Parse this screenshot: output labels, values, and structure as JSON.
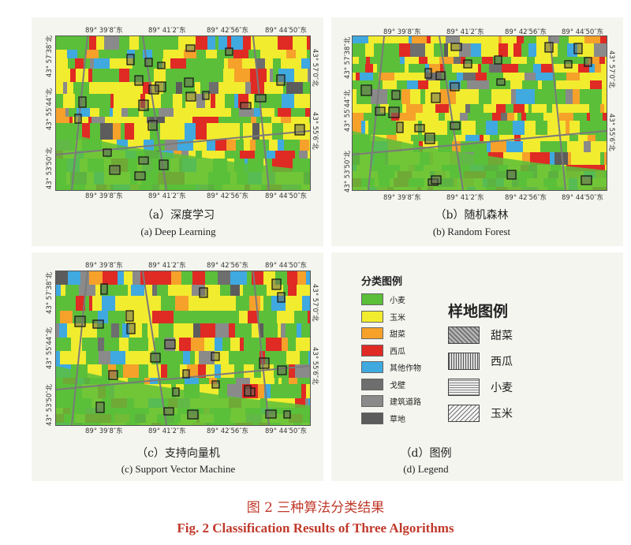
{
  "panels": [
    {
      "id": "a",
      "caption_zh": "（a）深度学习",
      "caption_en": "(a) Deep Learning",
      "top_ticks": [
        "89° 39′8″东",
        "89° 41′2″东",
        "89° 42′56″东",
        "89° 44′50″东"
      ],
      "bottom_ticks": [
        "89° 39′8″东",
        "89° 41′2″东",
        "89° 42′56″东",
        "89° 44′50″东"
      ],
      "left_ticks": [
        "43° 57′38″北",
        "43° 55′44″北",
        "43° 53′50″北"
      ],
      "right_ticks": [
        "43° 57′0″北",
        "43° 55′6″北"
      ]
    },
    {
      "id": "b",
      "caption_zh": "（b）随机森林",
      "caption_en": "(b) Random Forest",
      "top_ticks": [
        "89° 39′8″东",
        "89° 41′2″东",
        "89° 42′56″东",
        "89° 44′50″东"
      ],
      "bottom_ticks": [
        "89° 39′8″东",
        "89° 41′2″东",
        "89° 42′56″东",
        "89° 44′50″东"
      ],
      "left_ticks": [
        "43° 57′38″北",
        "43° 55′44″北",
        "43° 53′50″北"
      ],
      "right_ticks": [
        "43° 57′0″北",
        "43° 55′6″北"
      ]
    },
    {
      "id": "c",
      "caption_zh": "（c）支持向量机",
      "caption_en": "(c) Support Vector Machine",
      "top_ticks": [
        "89° 39′8″东",
        "89° 41′2″东",
        "89° 42′56″东",
        "89° 44′50″东"
      ],
      "bottom_ticks": [
        "89° 39′8″东",
        "89° 41′2″东",
        "89° 42′56″东",
        "89° 44′50″东"
      ],
      "left_ticks": [
        "43° 57′38″北",
        "43° 55′44″北",
        "43° 53′50″北"
      ],
      "right_ticks": [
        "43° 57′0″北",
        "43° 55′6″北"
      ]
    }
  ],
  "legend": {
    "caption_zh": "（d）图例",
    "caption_en": "(d) Legend",
    "class_title": "分类图例",
    "classes": [
      {
        "label": "小麦",
        "color": "#5bbf3a"
      },
      {
        "label": "玉米",
        "color": "#f2ec2e"
      },
      {
        "label": "甜菜",
        "color": "#f5a12a"
      },
      {
        "label": "西瓜",
        "color": "#e02a24"
      },
      {
        "label": "其他作物",
        "color": "#3fa9e0"
      },
      {
        "label": "戈壁",
        "color": "#6e6e6e"
      },
      {
        "label": "建筑道路",
        "color": "#8a8a8a"
      },
      {
        "label": "草地",
        "color": "#5c5c5c"
      }
    ],
    "plot_title": "样地图例",
    "plots": [
      {
        "label": "甜菜",
        "pattern": "cross"
      },
      {
        "label": "西瓜",
        "pattern": "vertical"
      },
      {
        "label": "小麦",
        "pattern": "horizontal"
      },
      {
        "label": "玉米",
        "pattern": "diagonal"
      }
    ]
  },
  "figure": {
    "title_zh": "图 2    三种算法分类结果",
    "title_en": "Fig. 2    Classification Results of Three Algorithms"
  }
}
